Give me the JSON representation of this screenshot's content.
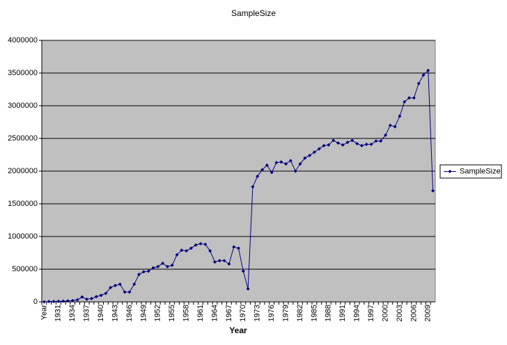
{
  "chart_data": {
    "type": "line",
    "title": "SampleSize",
    "x_label": "Year",
    "categories": [
      "Year",
      null,
      null,
      "1931",
      null,
      null,
      "1934",
      null,
      null,
      "1937",
      null,
      null,
      "1940",
      null,
      null,
      "1943",
      null,
      null,
      "1946",
      null,
      null,
      "1949",
      null,
      null,
      "1952",
      null,
      null,
      "1955",
      null,
      null,
      "1958",
      null,
      null,
      "1961",
      null,
      null,
      "1964",
      null,
      null,
      "1967",
      null,
      null,
      "1970",
      null,
      null,
      "1973",
      null,
      null,
      "1976",
      null,
      null,
      "1979",
      null,
      null,
      "1982",
      null,
      null,
      "1985",
      null,
      null,
      "1988",
      null,
      null,
      "1991",
      null,
      null,
      "1994",
      null,
      null,
      "1997",
      null,
      null,
      "2000",
      null,
      null,
      "2003",
      null,
      null,
      "2006",
      null,
      null,
      "2009",
      null
    ],
    "series": [
      {
        "name": "SampleSize",
        "color": "#000080",
        "values": [
          0,
          5000,
          5000,
          8000,
          10000,
          15000,
          20000,
          30000,
          75000,
          40000,
          50000,
          80000,
          100000,
          130000,
          220000,
          250000,
          270000,
          150000,
          150000,
          270000,
          420000,
          460000,
          470000,
          520000,
          540000,
          590000,
          540000,
          560000,
          720000,
          790000,
          780000,
          820000,
          870000,
          890000,
          880000,
          780000,
          610000,
          630000,
          630000,
          580000,
          840000,
          820000,
          470000,
          200000,
          1760000,
          1920000,
          2020000,
          2090000,
          1980000,
          2130000,
          2140000,
          2110000,
          2160000,
          2000000,
          2110000,
          2200000,
          2240000,
          2290000,
          2340000,
          2390000,
          2400000,
          2470000,
          2430000,
          2400000,
          2440000,
          2470000,
          2420000,
          2390000,
          2410000,
          2410000,
          2460000,
          2460000,
          2550000,
          2700000,
          2680000,
          2840000,
          3060000,
          3120000,
          3120000,
          3340000,
          3470000,
          3540000,
          1700000
        ]
      }
    ],
    "ylim": [
      0,
      4000000
    ],
    "yticks": [
      0,
      500000,
      1000000,
      1500000,
      2000000,
      2500000,
      3000000,
      3500000,
      4000000
    ],
    "grid": true,
    "legend": "right",
    "plot_background": "#c0c0c0"
  }
}
